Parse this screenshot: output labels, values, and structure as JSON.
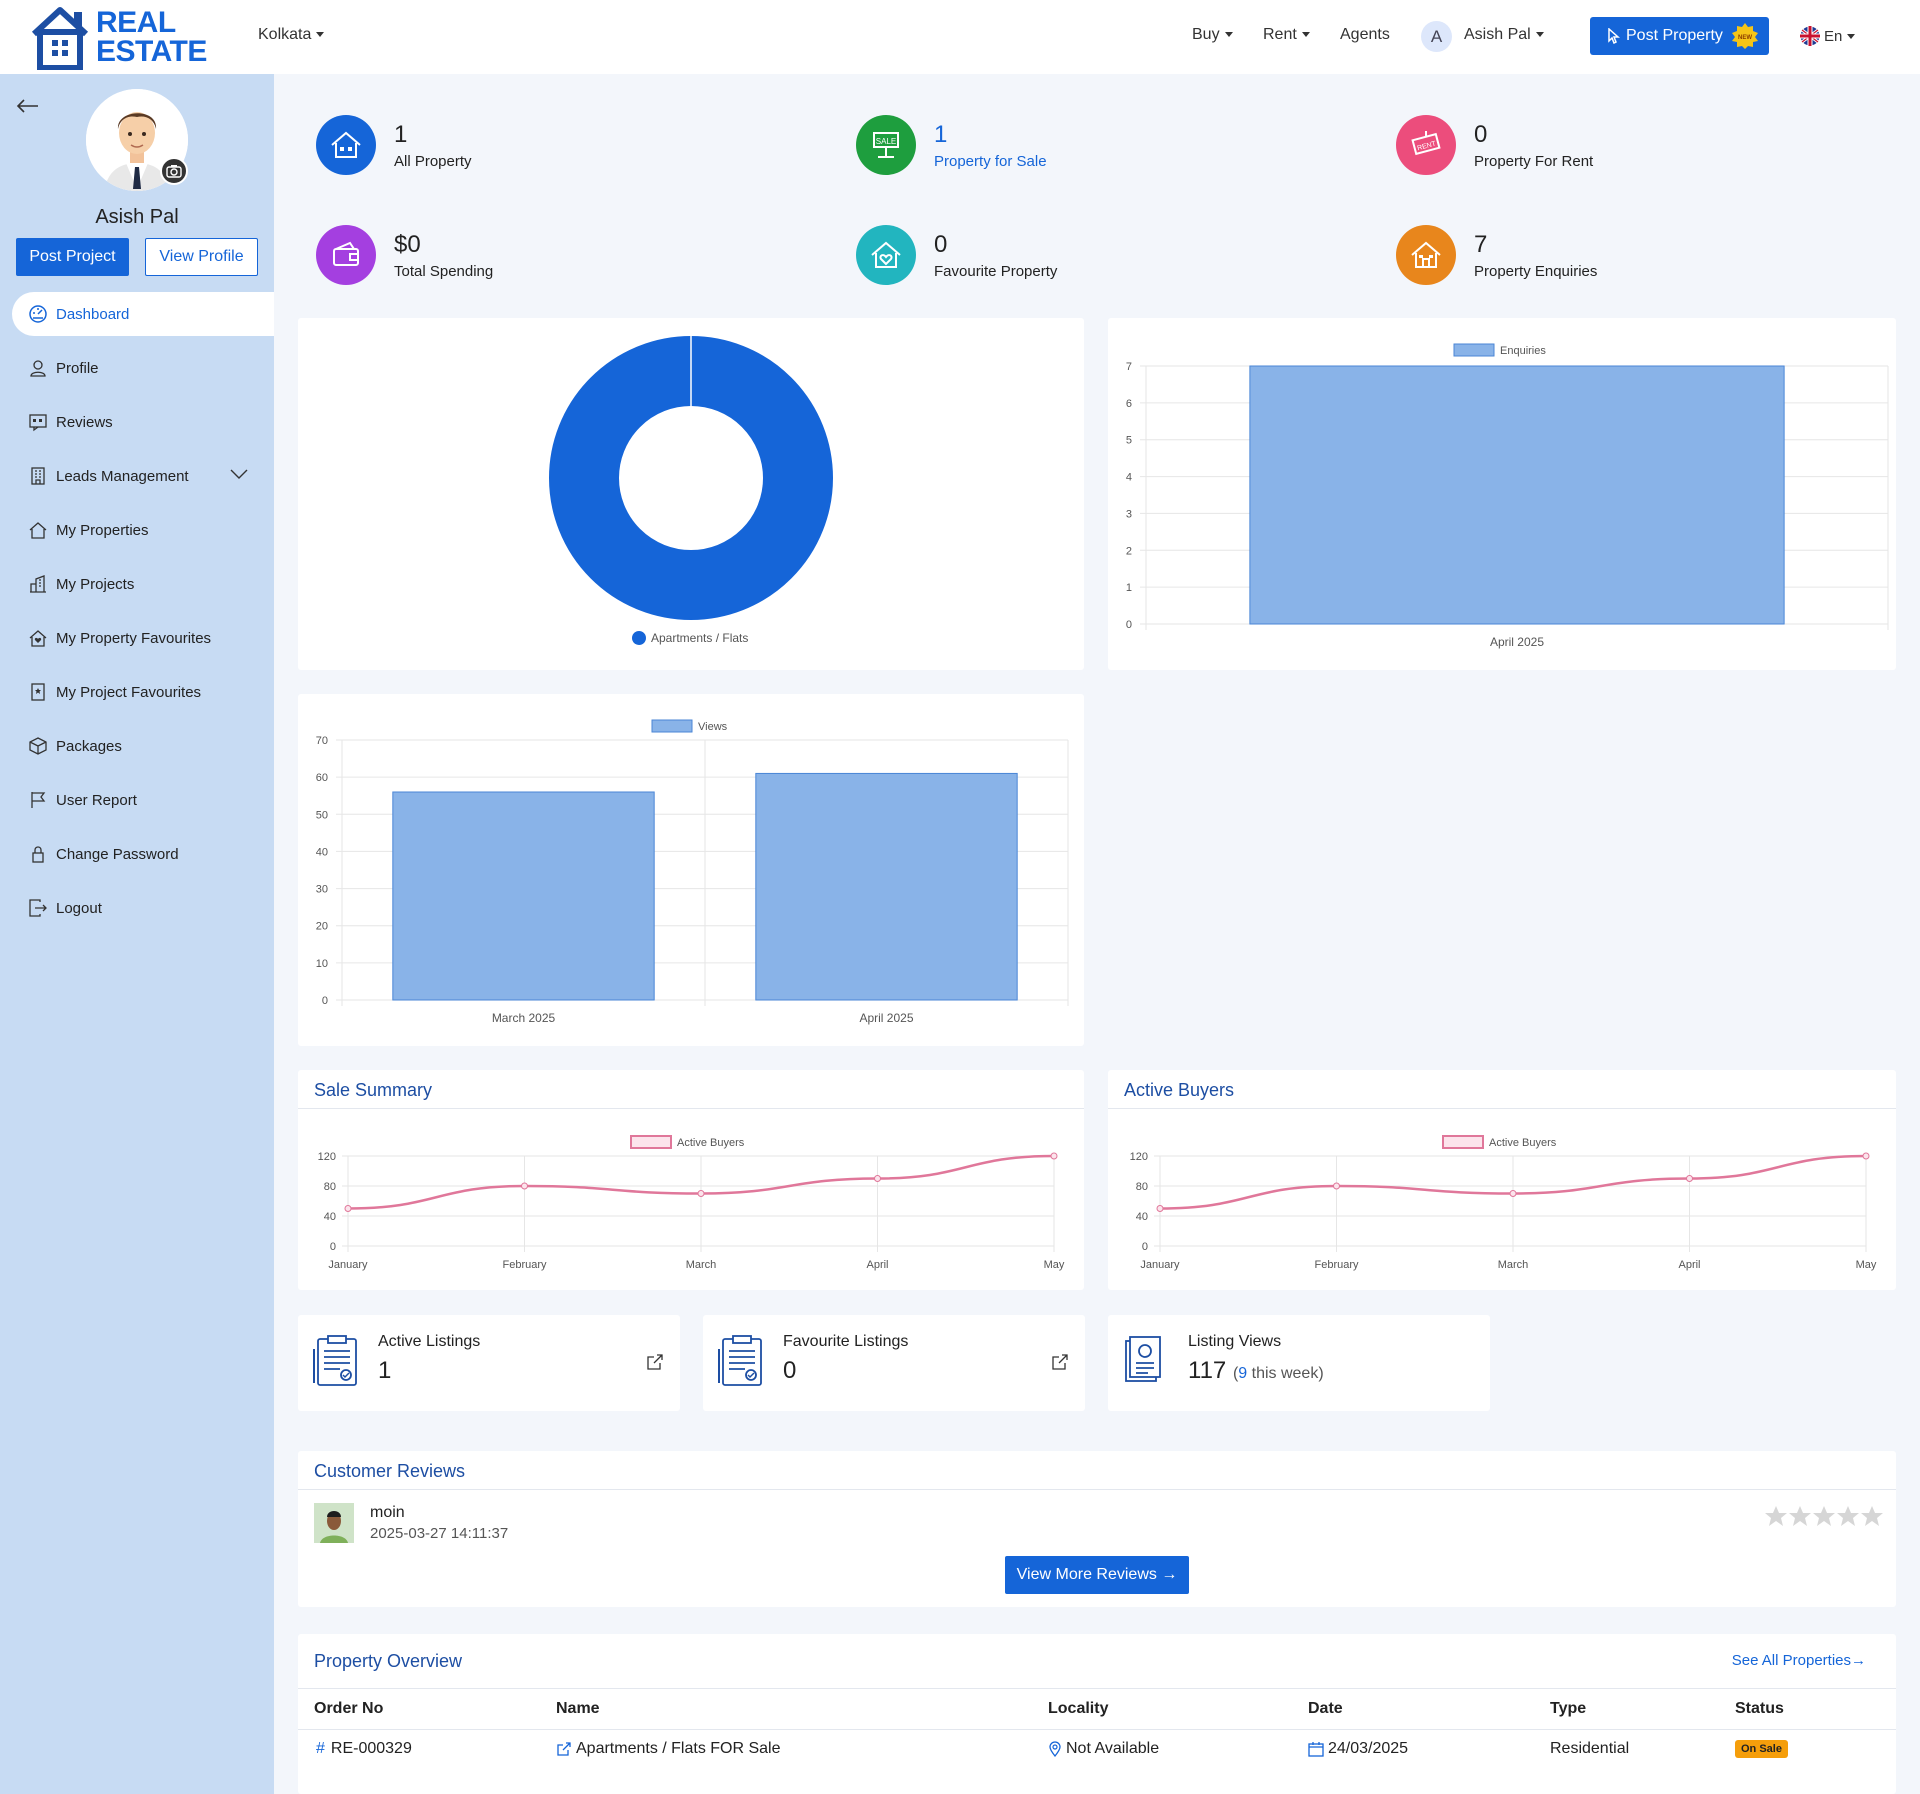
{
  "header": {
    "logo_line1": "REAL",
    "logo_line2": "ESTATE",
    "city": "Kolkata",
    "nav_buy": "Buy",
    "nav_rent": "Rent",
    "nav_agents": "Agents",
    "user_initial": "A",
    "user_name": "Asish Pal",
    "post_property": "Post Property",
    "new_badge": "NEW",
    "language": "En"
  },
  "sidebar": {
    "user_name": "Asish Pal",
    "post_project": "Post Project",
    "view_profile": "View Profile",
    "items": [
      {
        "label": "Dashboard",
        "icon": "dashboard-icon"
      },
      {
        "label": "Profile",
        "icon": "user-icon"
      },
      {
        "label": "Reviews",
        "icon": "reviews-icon"
      },
      {
        "label": "Leads Management",
        "icon": "building-icon"
      },
      {
        "label": "My Properties",
        "icon": "home-icon"
      },
      {
        "label": "My Projects",
        "icon": "city-icon"
      },
      {
        "label": "My Property Favourites",
        "icon": "home-heart-icon"
      },
      {
        "label": "My Project Favourites",
        "icon": "bookmark-icon"
      },
      {
        "label": "Packages",
        "icon": "box-icon"
      },
      {
        "label": "User Report",
        "icon": "flag-icon"
      },
      {
        "label": "Change Password",
        "icon": "lock-icon"
      },
      {
        "label": "Logout",
        "icon": "logout-icon"
      }
    ]
  },
  "stats": [
    {
      "value": "1",
      "label": "All Property",
      "bg": "#dde9f8",
      "icon_bg": "#1565d8",
      "highlight": false
    },
    {
      "value": "1",
      "label": "Property for Sale",
      "bg": "#dbeeea",
      "icon_bg": "#1e9e3e",
      "highlight": true
    },
    {
      "value": "0",
      "label": "Property For Rent",
      "bg": "#f5e1ea",
      "icon_bg": "#ec4d7c",
      "highlight": false
    },
    {
      "value": "$0",
      "label": "Total Spending",
      "bg": "#eae6fa",
      "icon_bg": "#a43fe0",
      "highlight": false
    },
    {
      "value": "0",
      "label": "Favourite Property",
      "bg": "#d9eef0",
      "icon_bg": "#22b5bf",
      "highlight": false
    },
    {
      "value": "7",
      "label": "Property Enquiries",
      "bg": "#f2ece6",
      "icon_bg": "#e8861c",
      "highlight": false
    }
  ],
  "chart_data": [
    {
      "type": "pie",
      "categories": [
        "Apartments / Flats"
      ],
      "values": [
        1
      ],
      "colors": [
        "#1565d8"
      ],
      "legend": "bottom"
    },
    {
      "type": "bar",
      "categories": [
        "April 2025"
      ],
      "series": [
        {
          "name": "Enquiries",
          "values": [
            7
          ]
        }
      ],
      "ylim": [
        0,
        7
      ],
      "yticks": [
        0,
        1,
        2,
        3,
        4,
        5,
        6,
        7
      ],
      "legend": "top"
    },
    {
      "type": "bar",
      "categories": [
        "March 2025",
        "April 2025"
      ],
      "series": [
        {
          "name": "Views",
          "values": [
            56,
            61
          ]
        }
      ],
      "ylim": [
        0,
        70
      ],
      "yticks": [
        0,
        10,
        20,
        30,
        40,
        50,
        60,
        70
      ],
      "legend": "top"
    },
    {
      "type": "line",
      "title": "Sale Summary",
      "categories": [
        "January",
        "February",
        "March",
        "April",
        "May"
      ],
      "series": [
        {
          "name": "Active Buyers",
          "values": [
            50,
            80,
            70,
            90,
            120
          ]
        }
      ],
      "ylim": [
        0,
        120
      ],
      "yticks": [
        0,
        40,
        80,
        120
      ],
      "legend": "top"
    },
    {
      "type": "line",
      "title": "Active Buyers",
      "categories": [
        "January",
        "February",
        "March",
        "April",
        "May"
      ],
      "series": [
        {
          "name": "Active Buyers",
          "values": [
            50,
            80,
            70,
            90,
            120
          ]
        }
      ],
      "ylim": [
        0,
        120
      ],
      "yticks": [
        0,
        40,
        80,
        120
      ],
      "legend": "top"
    }
  ],
  "listings": {
    "active_title": "Active Listings",
    "active_value": "1",
    "fav_title": "Favourite Listings",
    "fav_value": "0",
    "views_title": "Listing Views",
    "views_value": "117",
    "views_week_open": "(",
    "views_week_num": "9",
    "views_week_text": " this week)"
  },
  "reviews": {
    "title": "Customer Reviews",
    "reviewer": "moin",
    "datetime": "2025-03-27 14:11:37",
    "rating": 0,
    "button": "View More Reviews"
  },
  "overview": {
    "title": "Property Overview",
    "see_all": "See All Properties",
    "columns": [
      "Order No",
      "Name",
      "Locality",
      "Date",
      "Type",
      "Status"
    ],
    "rows": [
      {
        "order": "RE-000329",
        "name": "Apartments / Flats FOR Sale",
        "locality": "Not Available",
        "date": "24/03/2025",
        "type": "Residential",
        "status": "On Sale"
      }
    ]
  }
}
